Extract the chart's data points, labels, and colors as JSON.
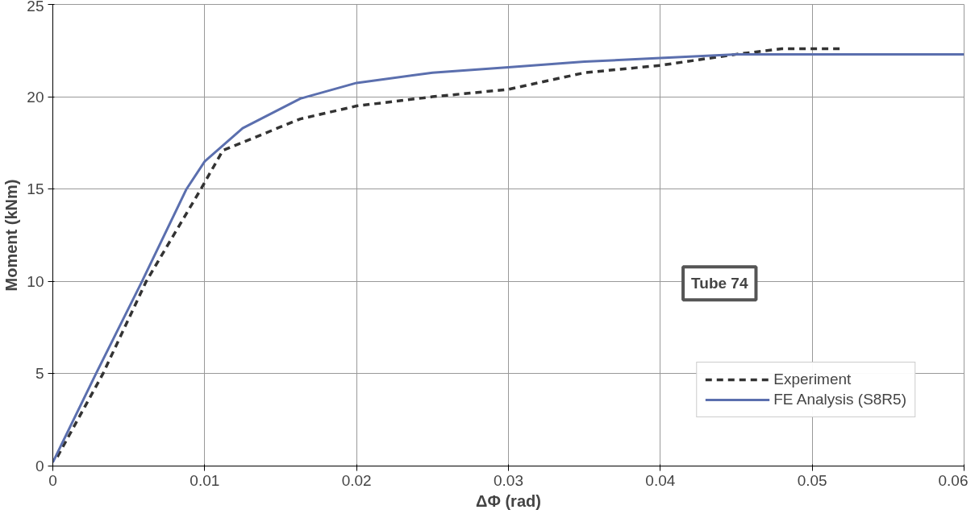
{
  "chart_data": {
    "type": "line",
    "xlabel": "ΔΦ (rad)",
    "ylabel": "Moment (kNm)",
    "xlim": [
      0,
      0.06
    ],
    "ylim": [
      0,
      25
    ],
    "xticks": [
      0,
      0.01,
      0.02,
      0.03,
      0.04,
      0.05,
      0.06
    ],
    "yticks": [
      0,
      5,
      10,
      15,
      20,
      25
    ],
    "grid": true,
    "legend": "bottom right",
    "annotations": [
      "Tube 74"
    ],
    "series": [
      {
        "name": "Experiment",
        "color": "#333333",
        "line_style": "dashed",
        "x": [
          0.0003,
          0.0033,
          0.00615,
          0.00975,
          0.0112,
          0.0163,
          0.02,
          0.025,
          0.03,
          0.035,
          0.04,
          0.045,
          0.048,
          0.052
        ],
        "values": [
          0.5,
          5,
          10,
          15,
          17.1,
          18.8,
          19.5,
          20.0,
          20.4,
          21.3,
          21.7,
          22.3,
          22.6,
          22.6
        ]
      },
      {
        "name": "FE Analysis (S8R5)",
        "color": "#5b6fae",
        "line_style": "solid",
        "x": [
          0,
          0.00284,
          0.00587,
          0.0088,
          0.01,
          0.0125,
          0.0163,
          0.02,
          0.025,
          0.03,
          0.035,
          0.04,
          0.045,
          0.05,
          0.06
        ],
        "values": [
          0.2,
          5,
          10,
          15,
          16.5,
          18.3,
          19.9,
          20.75,
          21.3,
          21.6,
          21.9,
          22.1,
          22.3,
          22.3,
          22.3
        ]
      }
    ]
  }
}
